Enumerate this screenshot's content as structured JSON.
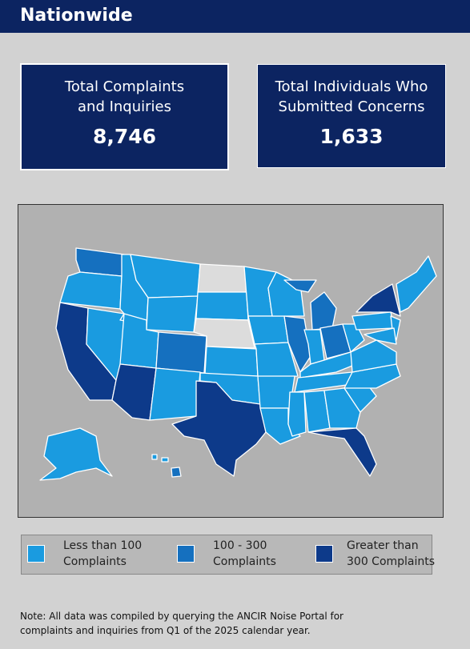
{
  "header": {
    "title": "Nationwide"
  },
  "cards": [
    {
      "label": "Total Complaints and Inquiries",
      "value": "8,746"
    },
    {
      "label": "Total Individuals Who Submitted Concerns",
      "value": "1,633"
    }
  ],
  "legend": [
    "Less than 100 Complaints",
    "100 - 300 Complaints",
    "Greater than 300 Complaints"
  ],
  "note": "Note: All data was compiled by querying the ANCIR Noise Portal for complaints and inquiries from Q1 of the 2025 calendar year."
}
